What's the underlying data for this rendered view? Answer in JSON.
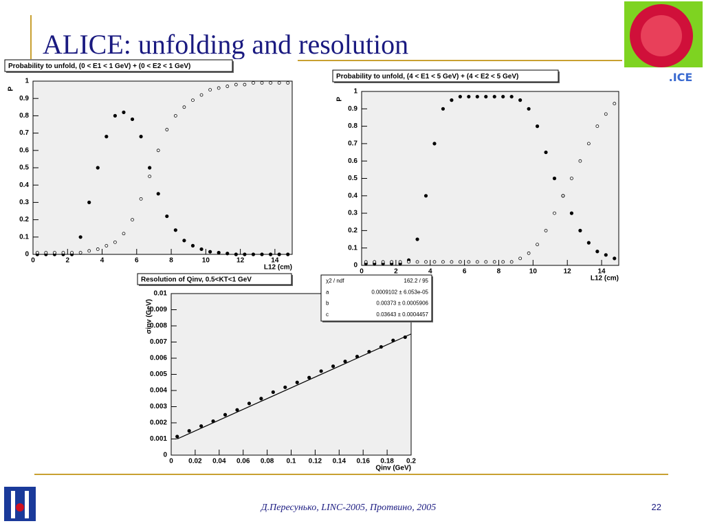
{
  "slide": {
    "title": "ALICE: unfolding and resolution",
    "footer": "Д.Пересунько, LINC-2005, Протвино, 2005",
    "page": "22"
  },
  "chart_data": [
    {
      "type": "scatter",
      "title": "Probability to unfold, (0 < E1 < 1 GeV) + (0 < E2 < 1 GeV)",
      "x_label": "L12 (cm)",
      "y_label": "P",
      "x": [
        0.25,
        0.75,
        1.25,
        1.75,
        2.25,
        2.75,
        3.25,
        3.75,
        4.25,
        4.75,
        5.25,
        5.75,
        6.25,
        6.75,
        7.25,
        7.75,
        8.25,
        8.75,
        9.25,
        9.75,
        10.25,
        10.75,
        11.25,
        11.75,
        12.25,
        12.75,
        13.25,
        13.75,
        14.25,
        14.75
      ],
      "series": [
        {
          "color": "#000000",
          "marker": "filled",
          "values": [
            0,
            0,
            0,
            0,
            0,
            0.1,
            0.3,
            0.5,
            0.68,
            0.8,
            0.82,
            0.78,
            0.68,
            0.5,
            0.35,
            0.22,
            0.14,
            0.08,
            0.05,
            0.03,
            0.015,
            0.01,
            0.005,
            0,
            0,
            0,
            0,
            0,
            0,
            0
          ]
        },
        {
          "color": "#000000",
          "marker": "open",
          "values": [
            0.01,
            0.01,
            0.01,
            0.01,
            0.01,
            0.01,
            0.02,
            0.03,
            0.05,
            0.07,
            0.12,
            0.2,
            0.32,
            0.45,
            0.6,
            0.72,
            0.8,
            0.85,
            0.89,
            0.92,
            0.95,
            0.96,
            0.97,
            0.98,
            0.98,
            0.99,
            0.99,
            0.99,
            0.99,
            0.99
          ]
        }
      ],
      "xlim": [
        0,
        15
      ],
      "xticks": [
        0,
        2,
        4,
        6,
        8,
        10,
        12,
        14
      ],
      "ylim": [
        0,
        1
      ],
      "yticks": [
        0,
        0.1,
        0.2,
        0.3,
        0.4,
        0.5,
        0.6,
        0.7,
        0.8,
        0.9,
        1
      ]
    },
    {
      "type": "scatter",
      "title": "Probability to unfold, (4 < E1 < 5 GeV) + (4 < E2 < 5 GeV)",
      "x_label": "L12 (cm)",
      "y_label": "P",
      "x": [
        0.25,
        0.75,
        1.25,
        1.75,
        2.25,
        2.75,
        3.25,
        3.75,
        4.25,
        4.75,
        5.25,
        5.75,
        6.25,
        6.75,
        7.25,
        7.75,
        8.25,
        8.75,
        9.25,
        9.75,
        10.25,
        10.75,
        11.25,
        11.75,
        12.25,
        12.75,
        13.25,
        13.75,
        14.25,
        14.75
      ],
      "series": [
        {
          "color": "#000000",
          "marker": "filled",
          "values": [
            0.01,
            0.01,
            0.01,
            0.01,
            0.01,
            0.03,
            0.15,
            0.4,
            0.7,
            0.9,
            0.95,
            0.97,
            0.97,
            0.97,
            0.97,
            0.97,
            0.97,
            0.97,
            0.95,
            0.9,
            0.8,
            0.65,
            0.5,
            0.4,
            0.3,
            0.2,
            0.13,
            0.08,
            0.06,
            0.04
          ]
        },
        {
          "color": "#000000",
          "marker": "open",
          "values": [
            0.02,
            0.02,
            0.02,
            0.02,
            0.02,
            0.02,
            0.02,
            0.02,
            0.02,
            0.02,
            0.02,
            0.02,
            0.02,
            0.02,
            0.02,
            0.02,
            0.02,
            0.02,
            0.04,
            0.07,
            0.12,
            0.2,
            0.3,
            0.4,
            0.5,
            0.6,
            0.7,
            0.8,
            0.87,
            0.93
          ]
        }
      ],
      "xlim": [
        0,
        15
      ],
      "xticks": [
        0,
        2,
        4,
        6,
        8,
        10,
        12,
        14
      ],
      "ylim": [
        0,
        1
      ],
      "yticks": [
        0,
        0.1,
        0.2,
        0.3,
        0.4,
        0.5,
        0.6,
        0.7,
        0.8,
        0.9,
        1
      ]
    },
    {
      "type": "scatter",
      "title": "Resolution of Qinv, 0.5<KT<1 GeV",
      "x_label": "Qinv (GeV)",
      "y_label": "σinv (GeV)",
      "x": [
        0.005,
        0.015,
        0.025,
        0.035,
        0.045,
        0.055,
        0.065,
        0.075,
        0.085,
        0.095,
        0.105,
        0.115,
        0.125,
        0.135,
        0.145,
        0.155,
        0.165,
        0.175,
        0.185,
        0.195
      ],
      "series": [
        {
          "color": "#000000",
          "marker": "filled",
          "values": [
            0.00115,
            0.0015,
            0.0018,
            0.0021,
            0.0025,
            0.0028,
            0.0032,
            0.0035,
            0.0039,
            0.0042,
            0.0045,
            0.0048,
            0.0052,
            0.0055,
            0.0058,
            0.0061,
            0.0064,
            0.0067,
            0.0071,
            0.0073
          ]
        }
      ],
      "fit_line": {
        "x": [
          0.005,
          0.2
        ],
        "values": [
          0.001,
          0.0075
        ]
      },
      "stats": [
        {
          "label": "χ2 / ndf",
          "value": "162.2 / 95"
        },
        {
          "label": "a",
          "value": "0.0009102 ± 6.053e-05"
        },
        {
          "label": "b",
          "value": "0.00373 ± 0.0005906"
        },
        {
          "label": "c",
          "value": "0.03643 ± 0.0004457"
        }
      ],
      "xlim": [
        0,
        0.2
      ],
      "xticks": [
        0,
        0.02,
        0.04,
        0.06,
        0.08,
        0.1,
        0.12,
        0.14,
        0.16,
        0.18,
        0.2
      ],
      "ylim": [
        0,
        0.01
      ],
      "yticks": [
        0,
        0.001,
        0.002,
        0.003,
        0.004,
        0.005,
        0.006,
        0.007,
        0.008,
        0.009,
        0.01
      ]
    }
  ]
}
